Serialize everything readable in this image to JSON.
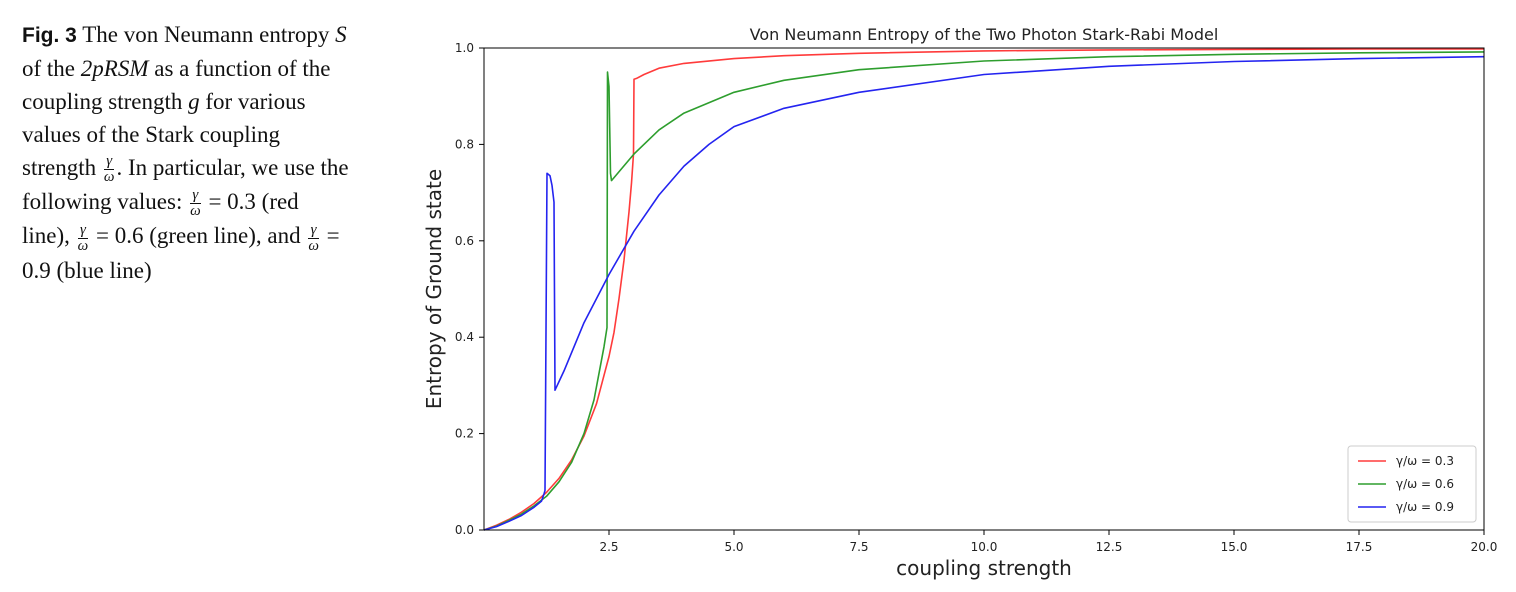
{
  "caption": {
    "label": "Fig. 3",
    "t1": "The von Neumann entropy ",
    "s": "S",
    "t2": " of the ",
    "model": "2pRSM",
    "t3": " as a function of the coupling strength ",
    "g": "g",
    "t4": " for various values of the Stark coupling strength ",
    "t5": ". In particular, we use the following values: ",
    "eq1": " = 0.3 (red line), ",
    "eq2": " = 0.6 (green line), and ",
    "eq3": " = 0.9 (blue line)",
    "frac_num": "γ",
    "frac_den": "ω"
  },
  "chart_data": {
    "type": "line",
    "title": "Von Neumann Entropy of the Two Photon Stark-Rabi Model",
    "xlabel": "coupling strength",
    "ylabel": "Entropy of Ground state",
    "xlim": [
      0,
      20
    ],
    "ylim": [
      0,
      1.0
    ],
    "xticks": [
      2.5,
      5.0,
      7.5,
      10.0,
      12.5,
      15.0,
      17.5,
      20.0
    ],
    "xtick_labels": [
      "2.5",
      "5.0",
      "7.5",
      "10.0",
      "12.5",
      "15.0",
      "17.5",
      "20.0"
    ],
    "yticks": [
      0.0,
      0.2,
      0.4,
      0.6,
      0.8,
      1.0
    ],
    "ytick_labels": [
      "0.0",
      "0.2",
      "0.4",
      "0.6",
      "0.8",
      "1.0"
    ],
    "legend_position": "bottom-right",
    "grid": false,
    "series": [
      {
        "name": "γ/ω = 0.3",
        "color": "#ff3b3b",
        "x": [
          0,
          0.25,
          0.5,
          0.75,
          1.0,
          1.25,
          1.5,
          1.75,
          2.0,
          2.25,
          2.5,
          2.6,
          2.7,
          2.8,
          2.85,
          2.9,
          2.95,
          2.99,
          3.0,
          3.05,
          3.2,
          3.5,
          4.0,
          5.0,
          6.0,
          7.5,
          10.0,
          12.5,
          15.0,
          17.5,
          20.0
        ],
        "y": [
          0.0,
          0.01,
          0.022,
          0.037,
          0.055,
          0.078,
          0.107,
          0.145,
          0.195,
          0.262,
          0.36,
          0.41,
          0.48,
          0.56,
          0.61,
          0.66,
          0.72,
          0.78,
          0.935,
          0.937,
          0.945,
          0.958,
          0.968,
          0.978,
          0.984,
          0.989,
          0.994,
          0.996,
          0.997,
          0.998,
          0.998
        ]
      },
      {
        "name": "γ/ω = 0.6",
        "color": "#2e9e2e",
        "x": [
          0,
          0.25,
          0.5,
          0.75,
          1.0,
          1.25,
          1.5,
          1.75,
          2.0,
          2.2,
          2.4,
          2.46,
          2.47,
          2.5,
          2.53,
          2.55,
          3.0,
          3.5,
          4.0,
          5.0,
          6.0,
          7.5,
          10.0,
          12.5,
          15.0,
          17.5,
          20.0
        ],
        "y": [
          0.0,
          0.008,
          0.02,
          0.033,
          0.05,
          0.07,
          0.1,
          0.14,
          0.2,
          0.27,
          0.38,
          0.42,
          0.95,
          0.92,
          0.74,
          0.725,
          0.78,
          0.83,
          0.865,
          0.908,
          0.933,
          0.955,
          0.973,
          0.982,
          0.987,
          0.99,
          0.992
        ]
      },
      {
        "name": "γ/ω = 0.9",
        "color": "#2424f0",
        "x": [
          0,
          0.25,
          0.5,
          0.75,
          1.0,
          1.15,
          1.2,
          1.22,
          1.26,
          1.32,
          1.36,
          1.4,
          1.42,
          1.6,
          2.0,
          2.5,
          3.0,
          3.5,
          4.0,
          4.5,
          5.0,
          6.0,
          7.5,
          10.0,
          12.5,
          15.0,
          17.5,
          20.0
        ],
        "y": [
          0.0,
          0.007,
          0.018,
          0.03,
          0.047,
          0.06,
          0.075,
          0.082,
          0.74,
          0.735,
          0.715,
          0.68,
          0.29,
          0.33,
          0.43,
          0.53,
          0.62,
          0.695,
          0.755,
          0.8,
          0.837,
          0.875,
          0.908,
          0.945,
          0.962,
          0.972,
          0.978,
          0.982
        ]
      }
    ]
  }
}
